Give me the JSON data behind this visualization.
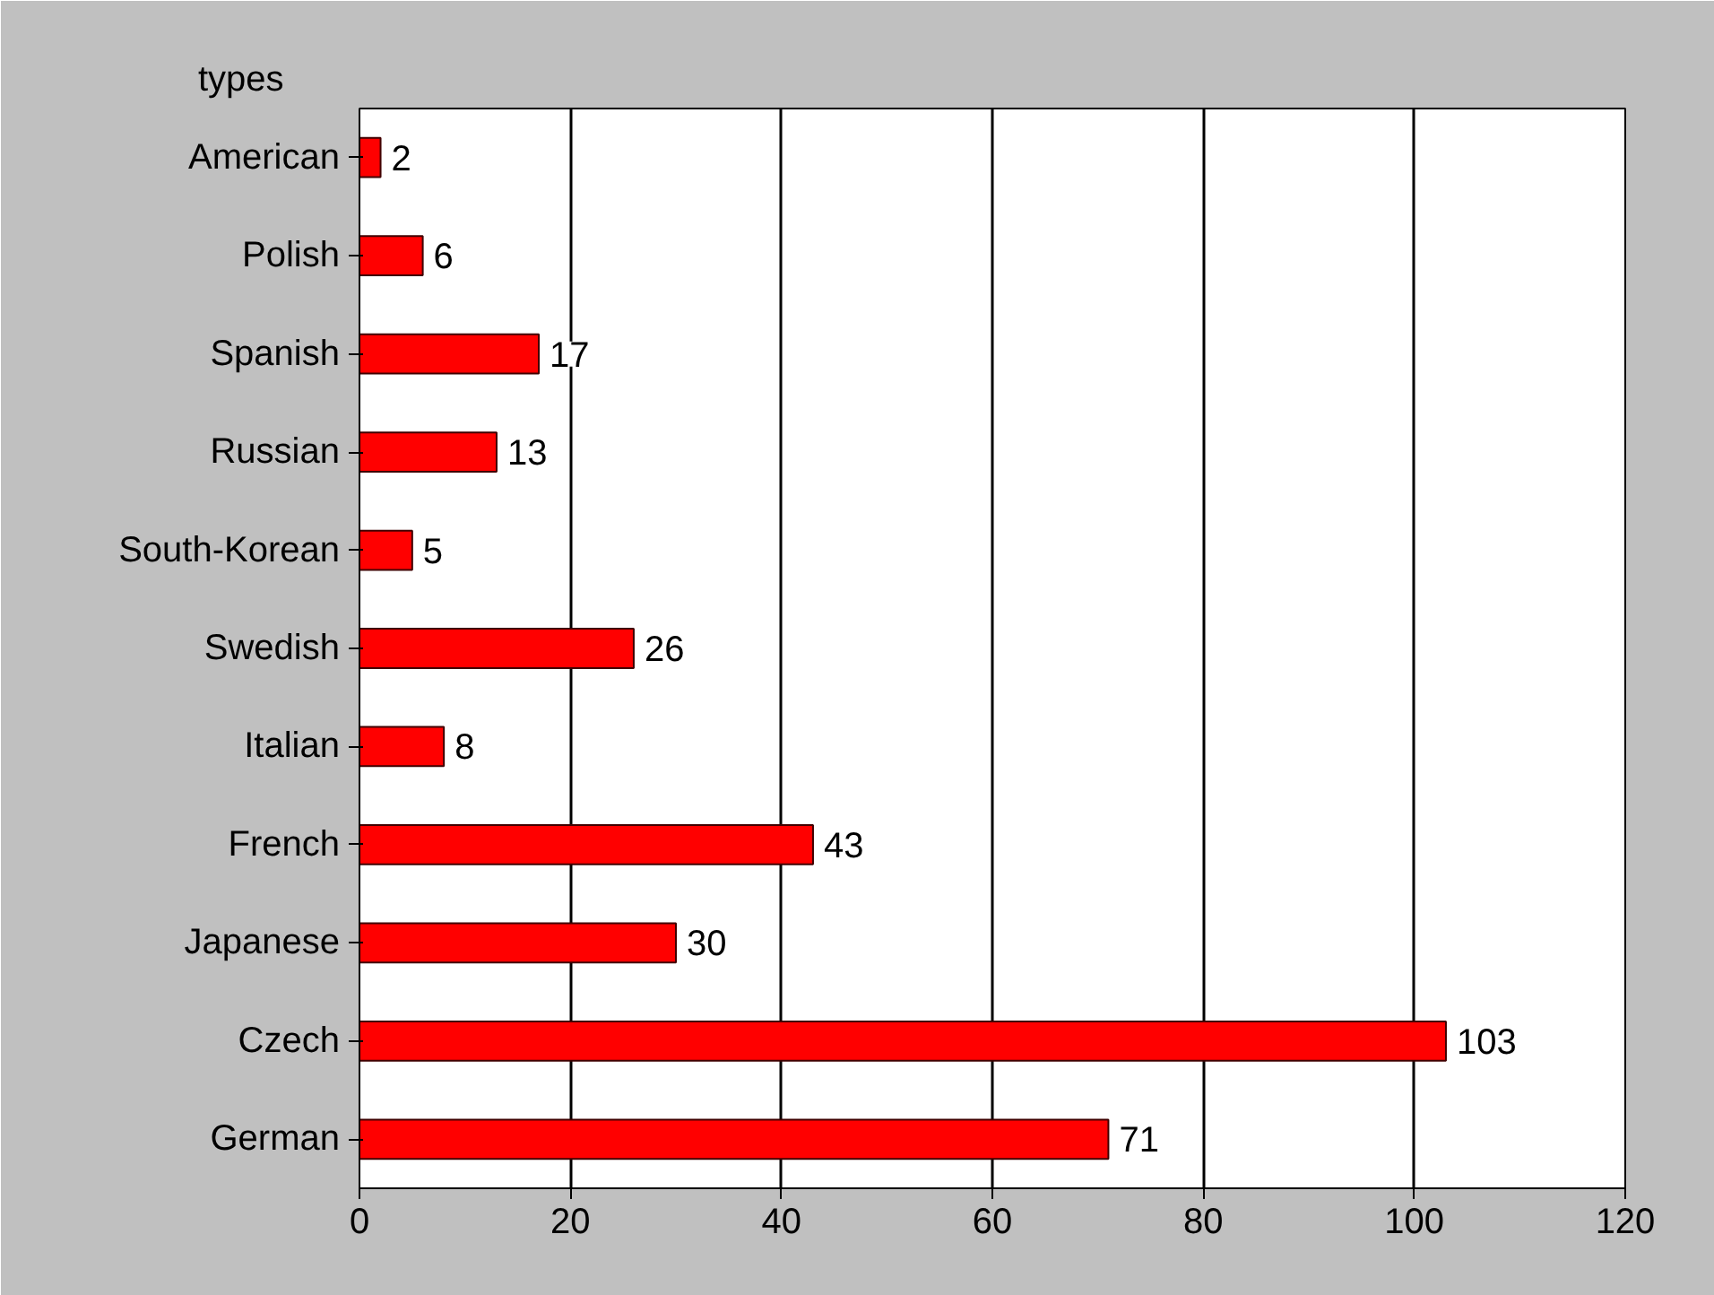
{
  "chart_data": {
    "type": "bar",
    "orientation": "horizontal",
    "ylabel": "types",
    "categories": [
      "American",
      "Polish",
      "Spanish",
      "Russian",
      "South-Korean",
      "Swedish",
      "Italian",
      "French",
      "Japanese",
      "Czech",
      "German"
    ],
    "values": [
      2,
      6,
      17,
      13,
      5,
      26,
      8,
      43,
      30,
      103,
      71
    ],
    "color": "#ff0000",
    "data_labels": true,
    "xlim": [
      0,
      120
    ],
    "xticks": [
      0,
      20,
      40,
      60,
      80,
      100,
      120
    ],
    "grid": "x"
  }
}
